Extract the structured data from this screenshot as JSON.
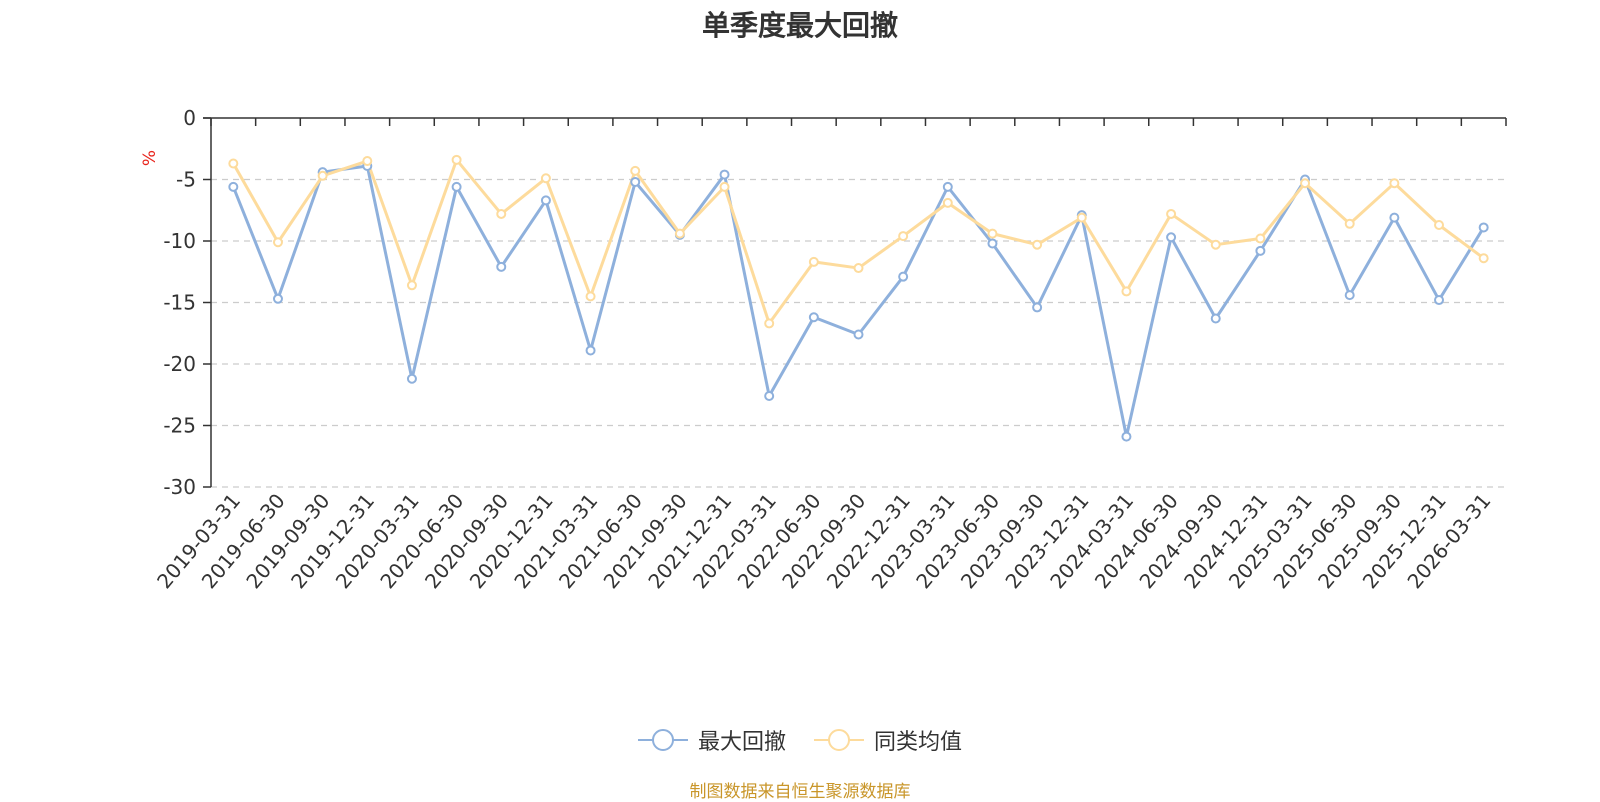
{
  "chart_data": {
    "type": "line",
    "title": "单季度最大回撤",
    "ylabel": "%",
    "ylim": [
      -30,
      0
    ],
    "yticks": [
      0,
      -5,
      -10,
      -15,
      -20,
      -25,
      -30
    ],
    "grid": true,
    "legend_position": "bottom",
    "categories": [
      "2019-03-31",
      "2019-06-30",
      "2019-09-30",
      "2019-12-31",
      "2020-03-31",
      "2020-06-30",
      "2020-09-30",
      "2020-12-31",
      "2021-03-31",
      "2021-06-30",
      "2021-09-30",
      "2021-12-31",
      "2022-03-31",
      "2022-06-30",
      "2022-09-30",
      "2022-12-31",
      "2023-03-31",
      "2023-06-30",
      "2023-09-30",
      "2023-12-31",
      "2024-03-31",
      "2024-06-30",
      "2024-09-30",
      "2024-12-31",
      "2025-03-31",
      "2025-06-30",
      "2025-09-30",
      "2025-12-31",
      "2026-03-31"
    ],
    "series": [
      {
        "name": "最大回撤",
        "color": "#8eb0dc",
        "values": [
          -5.6,
          -14.7,
          -4.4,
          -3.9,
          -21.2,
          -5.6,
          -12.1,
          -6.7,
          -18.9,
          -5.2,
          -9.5,
          -4.6,
          -22.6,
          -16.2,
          -17.6,
          -12.9,
          -5.6,
          -10.2,
          -15.4,
          -7.9,
          -25.9,
          -9.7,
          -16.3,
          -10.8,
          -5.0,
          -14.4,
          -8.1,
          -14.8,
          -8.9
        ]
      },
      {
        "name": "同类均值",
        "color": "#fddb9c",
        "values": [
          -3.7,
          -10.1,
          -4.7,
          -3.5,
          -13.6,
          -3.4,
          -7.8,
          -4.9,
          -14.5,
          -4.3,
          -9.4,
          -5.6,
          -16.7,
          -11.7,
          -12.2,
          -9.6,
          -6.9,
          -9.4,
          -10.3,
          -8.1,
          -14.1,
          -7.8,
          -10.3,
          -9.8,
          -5.3,
          -8.6,
          -5.3,
          -8.7,
          -11.4
        ]
      }
    ]
  },
  "source_note": "制图数据来自恒生聚源数据库"
}
